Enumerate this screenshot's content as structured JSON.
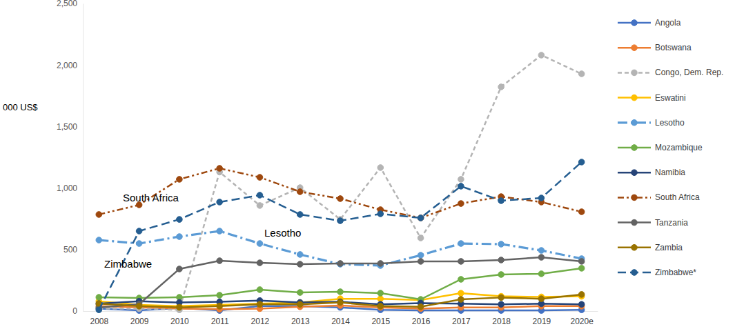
{
  "chart_data": {
    "type": "line",
    "y_label": "000 US$",
    "categories": [
      "2008",
      "2009",
      "2010",
      "2011",
      "2012",
      "2013",
      "2014",
      "2015",
      "2016",
      "2017",
      "2018",
      "2019",
      "2020e"
    ],
    "ylim": [
      0,
      2500
    ],
    "yticks": [
      0,
      500,
      {
        "value": 1000,
        "label": "1,000"
      },
      {
        "value": 1500,
        "label": "1,500"
      },
      {
        "value": 2000,
        "label": "2,000"
      },
      {
        "value": 2500,
        "label": "2,500"
      }
    ],
    "grid": false,
    "legend": "right",
    "marker": "circle",
    "series": [
      {
        "name": "Angola",
        "color": "#4472c4",
        "line_style": "solid",
        "values": [
          20,
          5,
          25,
          5,
          40,
          40,
          30,
          10,
          5,
          5,
          5,
          5,
          10
        ]
      },
      {
        "name": "Botswana",
        "color": "#ed7d31",
        "line_style": "solid",
        "values": [
          40,
          30,
          20,
          15,
          20,
          35,
          45,
          30,
          20,
          30,
          30,
          40,
          40
        ]
      },
      {
        "name": "Congo, Dem. Rep.",
        "color": "#b4b4b4",
        "line_style": "dashed",
        "values": [
          20,
          20,
          10,
          1130,
          858,
          1003,
          745,
          1166,
          594,
          1071,
          1822,
          2080,
          1928
        ]
      },
      {
        "name": "Eswatini",
        "color": "#ffc000",
        "line_style": "solid",
        "values": [
          80,
          50,
          40,
          50,
          60,
          70,
          100,
          100,
          90,
          145,
          120,
          115,
          120
        ]
      },
      {
        "name": "Lesotho",
        "color": "#5b9bd5",
        "line_style": "dashdot",
        "values": [
          577,
          549,
          605,
          650,
          549,
          460,
          381,
          370,
          454,
          549,
          544,
          493,
          426
        ]
      },
      {
        "name": "Mozambique",
        "color": "#70ad47",
        "line_style": "solid",
        "values": [
          112,
          106,
          112,
          129,
          174,
          151,
          157,
          146,
          95,
          258,
          297,
          303,
          348
        ]
      },
      {
        "name": "Namibia",
        "color": "#264478",
        "line_style": "solid",
        "values": [
          60,
          80,
          70,
          75,
          85,
          70,
          75,
          55,
          65,
          60,
          55,
          60,
          55
        ]
      },
      {
        "name": "South Africa",
        "color": "#9e480e",
        "line_style": "dashdotdot",
        "values": [
          785,
          863,
          1071,
          1160,
          1087,
          970,
          914,
          824,
          757,
          874,
          930,
          886,
          807
        ]
      },
      {
        "name": "Tanzania",
        "color": "#636363",
        "line_style": "solid",
        "values": [
          28,
          56,
          342,
          409,
          392,
          381,
          387,
          387,
          404,
          404,
          415,
          437,
          404
        ]
      },
      {
        "name": "Zambia",
        "color": "#997300",
        "line_style": "solid",
        "values": [
          60,
          40,
          30,
          40,
          55,
          55,
          70,
          40,
          35,
          95,
          110,
          100,
          135
        ]
      },
      {
        "name": "Zimbabwe*",
        "color": "#255e91",
        "line_style": "longdash",
        "values": [
          10,
          650,
          745,
          886,
          942,
          785,
          734,
          790,
          757,
          1015,
          897,
          919,
          1211
        ]
      }
    ],
    "annotations": [
      "South Africa",
      "Lesotho",
      "Zimbabwe"
    ]
  }
}
